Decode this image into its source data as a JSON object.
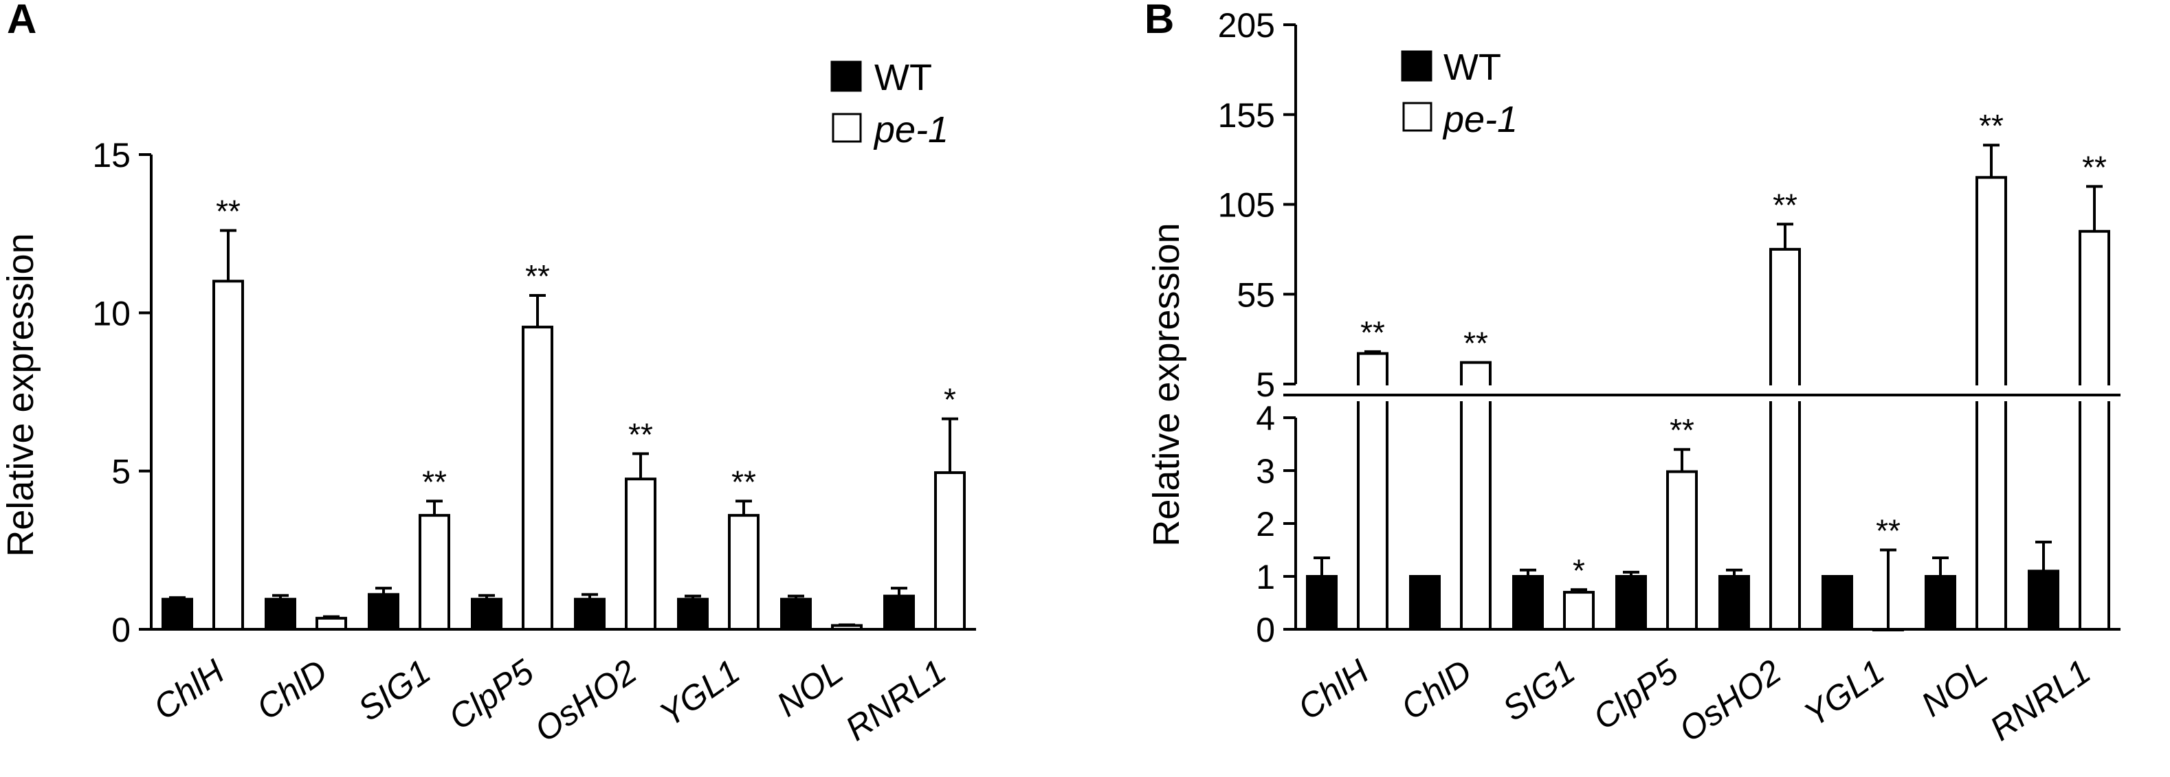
{
  "chart_data": [
    {
      "panel": "A",
      "type": "bar",
      "categories": [
        "ChlH",
        "ChlD",
        "SIG1",
        "ClpP5",
        "OsHO2",
        "YGL1",
        "NOL",
        "RNRL1"
      ],
      "ylabel": "Relative expression",
      "ylim": [
        0,
        15
      ],
      "yticks": [
        0,
        5,
        10,
        15
      ],
      "grid": false,
      "legend_position": "top-right",
      "series": [
        {
          "name": "WT",
          "color": "#000000",
          "fill": "filled",
          "values": [
            0.95,
            0.95,
            1.1,
            0.95,
            0.95,
            0.95,
            0.95,
            1.05
          ],
          "errors": [
            0.05,
            0.12,
            0.2,
            0.12,
            0.15,
            0.1,
            0.1,
            0.25
          ],
          "significance": [
            "",
            "",
            "",
            "",
            "",
            "",
            "",
            ""
          ]
        },
        {
          "name": "pe-1",
          "color": "#000000",
          "fill": "open",
          "values": [
            11.0,
            0.35,
            3.6,
            9.55,
            4.75,
            3.6,
            0.12,
            4.95
          ],
          "errors": [
            1.6,
            0.05,
            0.45,
            1.0,
            0.8,
            0.45,
            0.02,
            1.7
          ],
          "significance": [
            "**",
            "",
            "**",
            "**",
            "**",
            "**",
            "",
            "*"
          ]
        }
      ]
    },
    {
      "panel": "B",
      "type": "bar",
      "categories": [
        "ChlH",
        "ChlD",
        "SIG1",
        "ClpP5",
        "OsHO2",
        "YGL1",
        "NOL",
        "RNRL1"
      ],
      "ylabel": "Relative expression",
      "broken_axis": true,
      "lower_ylim": [
        0,
        4
      ],
      "lower_yticks": [
        0,
        1,
        2,
        3,
        4
      ],
      "upper_ylim": [
        5,
        205
      ],
      "upper_yticks": [
        5,
        55,
        105,
        155,
        205
      ],
      "grid": false,
      "legend_position": "top-left",
      "series": [
        {
          "name": "WT",
          "color": "#000000",
          "fill": "filled",
          "values": [
            1.0,
            1.0,
            1.0,
            1.0,
            1.0,
            1.0,
            1.0,
            1.1
          ],
          "errors": [
            0.35,
            0.0,
            0.12,
            0.08,
            0.12,
            0.0,
            0.35,
            0.55
          ],
          "significance": [
            "",
            "",
            "",
            "",
            "",
            "",
            "",
            ""
          ]
        },
        {
          "name": "pe-1",
          "color": "#000000",
          "fill": "open",
          "values": [
            22,
            17,
            0.7,
            2.98,
            80,
            0,
            120,
            90
          ],
          "errors": [
            1.0,
            0.0,
            0.05,
            0.42,
            14,
            1.5,
            18,
            25
          ],
          "significance": [
            "**",
            "**",
            "*",
            "**",
            "**",
            "**",
            "**",
            "**"
          ]
        }
      ]
    }
  ]
}
